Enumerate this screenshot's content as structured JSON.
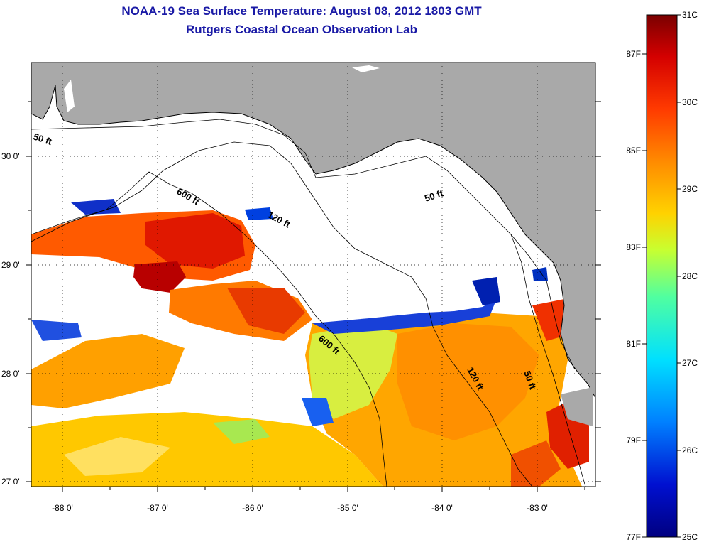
{
  "title": "NOAA-19 Sea Surface Temperature:  August 08, 2012 1803 GMT",
  "subtitle": "Rutgers Coastal Ocean Observation Lab",
  "map": {
    "lon_ticks": [
      "-88 0'",
      "-87 0'",
      "-86 0'",
      "-85 0'",
      "-84 0'",
      "-83 0'"
    ],
    "lat_ticks": [
      "30 0'",
      "29 0'",
      "28 0'",
      "27 0'"
    ],
    "contours": [
      {
        "label": "50 ft"
      },
      {
        "label": "600 ft"
      },
      {
        "label": "120 ft"
      },
      {
        "label": "50 ft"
      },
      {
        "label": "600 ft"
      },
      {
        "label": "120 ft"
      },
      {
        "label": "50 ft"
      }
    ],
    "colors": {
      "land": "#a9a9a9",
      "cloud": "#ffffff"
    }
  },
  "colorbar": {
    "fahrenheit": [
      "87F",
      "85F",
      "83F",
      "81F",
      "79F",
      "77F"
    ],
    "celsius": [
      "31C",
      "30C",
      "29C",
      "28C",
      "27C",
      "26C",
      "25C"
    ],
    "colors": [
      "#7a0000",
      "#d40000",
      "#ff3a00",
      "#ff8a00",
      "#ffd200",
      "#c8ff30",
      "#50ffa0",
      "#00e0ff",
      "#0080ff",
      "#0010d0",
      "#000080"
    ]
  }
}
